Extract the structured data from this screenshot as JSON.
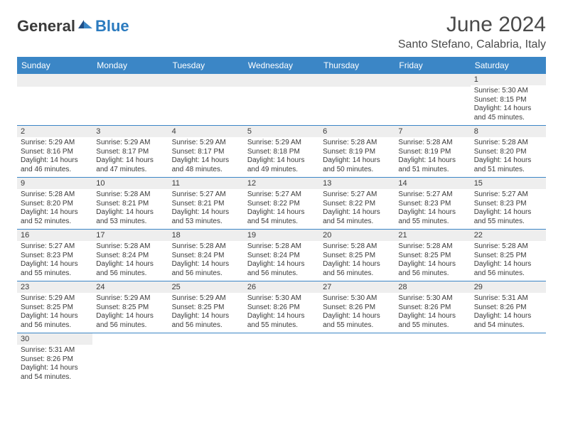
{
  "logo": {
    "text_dark": "General",
    "text_blue": "Blue",
    "dark_color": "#3a3a3a",
    "blue_color": "#2b7bbf"
  },
  "header": {
    "title": "June 2024",
    "location": "Santo Stefano, Calabria, Italy"
  },
  "weekdays": [
    "Sunday",
    "Monday",
    "Tuesday",
    "Wednesday",
    "Thursday",
    "Friday",
    "Saturday"
  ],
  "colors": {
    "header_bg": "#3b86c6",
    "header_text": "#ffffff",
    "daynum_bg": "#eeeeee",
    "border": "#3b86c6",
    "text": "#3a3a3a"
  },
  "days": {
    "1": {
      "sunrise": "5:30 AM",
      "sunset": "8:15 PM",
      "daylight": "14 hours and 45 minutes."
    },
    "2": {
      "sunrise": "5:29 AM",
      "sunset": "8:16 PM",
      "daylight": "14 hours and 46 minutes."
    },
    "3": {
      "sunrise": "5:29 AM",
      "sunset": "8:17 PM",
      "daylight": "14 hours and 47 minutes."
    },
    "4": {
      "sunrise": "5:29 AM",
      "sunset": "8:17 PM",
      "daylight": "14 hours and 48 minutes."
    },
    "5": {
      "sunrise": "5:29 AM",
      "sunset": "8:18 PM",
      "daylight": "14 hours and 49 minutes."
    },
    "6": {
      "sunrise": "5:28 AM",
      "sunset": "8:19 PM",
      "daylight": "14 hours and 50 minutes."
    },
    "7": {
      "sunrise": "5:28 AM",
      "sunset": "8:19 PM",
      "daylight": "14 hours and 51 minutes."
    },
    "8": {
      "sunrise": "5:28 AM",
      "sunset": "8:20 PM",
      "daylight": "14 hours and 51 minutes."
    },
    "9": {
      "sunrise": "5:28 AM",
      "sunset": "8:20 PM",
      "daylight": "14 hours and 52 minutes."
    },
    "10": {
      "sunrise": "5:28 AM",
      "sunset": "8:21 PM",
      "daylight": "14 hours and 53 minutes."
    },
    "11": {
      "sunrise": "5:27 AM",
      "sunset": "8:21 PM",
      "daylight": "14 hours and 53 minutes."
    },
    "12": {
      "sunrise": "5:27 AM",
      "sunset": "8:22 PM",
      "daylight": "14 hours and 54 minutes."
    },
    "13": {
      "sunrise": "5:27 AM",
      "sunset": "8:22 PM",
      "daylight": "14 hours and 54 minutes."
    },
    "14": {
      "sunrise": "5:27 AM",
      "sunset": "8:23 PM",
      "daylight": "14 hours and 55 minutes."
    },
    "15": {
      "sunrise": "5:27 AM",
      "sunset": "8:23 PM",
      "daylight": "14 hours and 55 minutes."
    },
    "16": {
      "sunrise": "5:27 AM",
      "sunset": "8:23 PM",
      "daylight": "14 hours and 55 minutes."
    },
    "17": {
      "sunrise": "5:28 AM",
      "sunset": "8:24 PM",
      "daylight": "14 hours and 56 minutes."
    },
    "18": {
      "sunrise": "5:28 AM",
      "sunset": "8:24 PM",
      "daylight": "14 hours and 56 minutes."
    },
    "19": {
      "sunrise": "5:28 AM",
      "sunset": "8:24 PM",
      "daylight": "14 hours and 56 minutes."
    },
    "20": {
      "sunrise": "5:28 AM",
      "sunset": "8:25 PM",
      "daylight": "14 hours and 56 minutes."
    },
    "21": {
      "sunrise": "5:28 AM",
      "sunset": "8:25 PM",
      "daylight": "14 hours and 56 minutes."
    },
    "22": {
      "sunrise": "5:28 AM",
      "sunset": "8:25 PM",
      "daylight": "14 hours and 56 minutes."
    },
    "23": {
      "sunrise": "5:29 AM",
      "sunset": "8:25 PM",
      "daylight": "14 hours and 56 minutes."
    },
    "24": {
      "sunrise": "5:29 AM",
      "sunset": "8:25 PM",
      "daylight": "14 hours and 56 minutes."
    },
    "25": {
      "sunrise": "5:29 AM",
      "sunset": "8:25 PM",
      "daylight": "14 hours and 56 minutes."
    },
    "26": {
      "sunrise": "5:30 AM",
      "sunset": "8:26 PM",
      "daylight": "14 hours and 55 minutes."
    },
    "27": {
      "sunrise": "5:30 AM",
      "sunset": "8:26 PM",
      "daylight": "14 hours and 55 minutes."
    },
    "28": {
      "sunrise": "5:30 AM",
      "sunset": "8:26 PM",
      "daylight": "14 hours and 55 minutes."
    },
    "29": {
      "sunrise": "5:31 AM",
      "sunset": "8:26 PM",
      "daylight": "14 hours and 54 minutes."
    },
    "30": {
      "sunrise": "5:31 AM",
      "sunset": "8:26 PM",
      "daylight": "14 hours and 54 minutes."
    }
  },
  "labels": {
    "sunrise": "Sunrise:",
    "sunset": "Sunset:",
    "daylight": "Daylight:"
  },
  "layout": {
    "first_weekday_index": 6,
    "num_days": 30
  }
}
